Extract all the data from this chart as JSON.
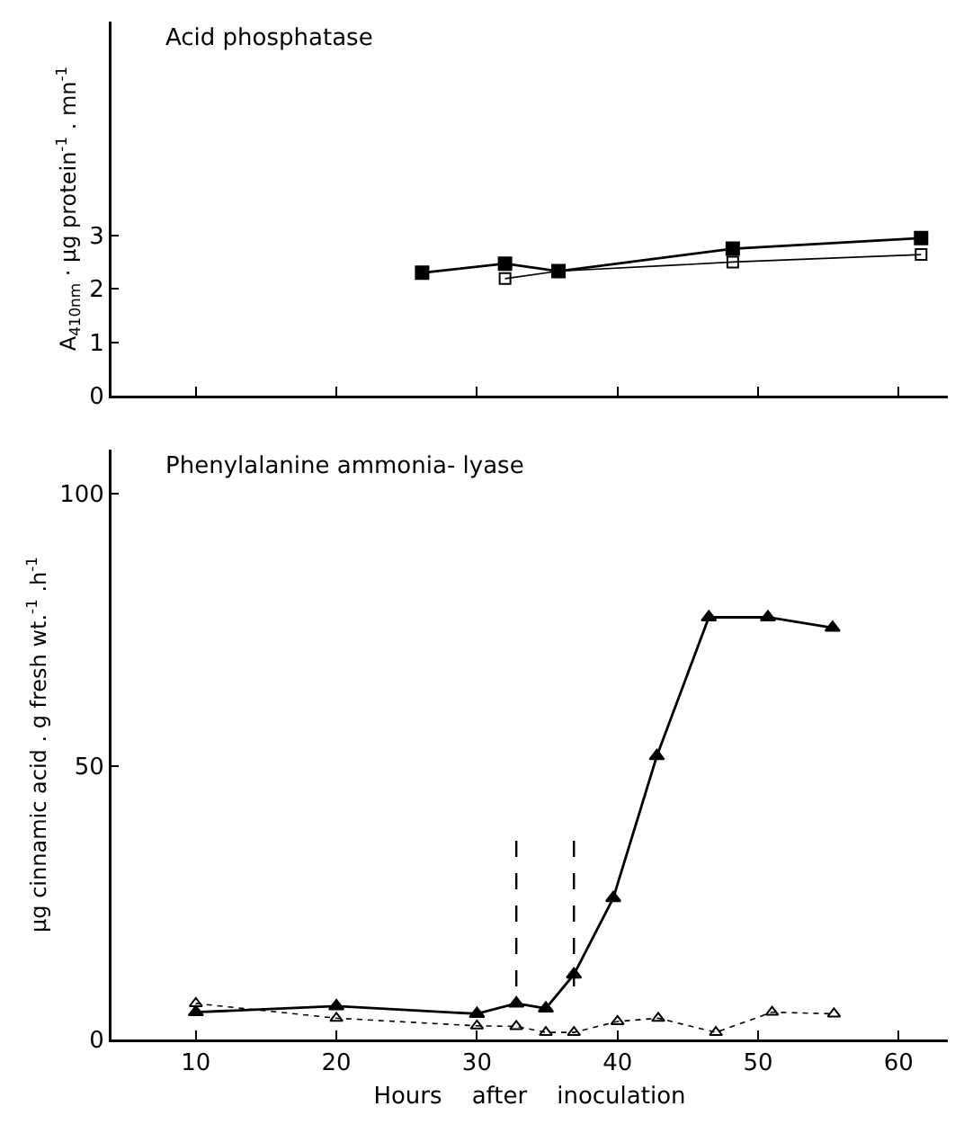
{
  "chart_data": [
    {
      "type": "line",
      "title": "Acid phosphatase",
      "ylabel": "A$_{410nm}$ · µg protein$^{-1}$ . mn$^{-1}$",
      "xlim": [
        4,
        63.5
      ],
      "xticks": [
        10,
        20,
        30,
        40,
        50,
        60
      ],
      "ylim": [
        0,
        7
      ],
      "yticks": [
        0,
        1,
        2,
        3
      ],
      "tick_labels": "y",
      "series": [
        {
          "color": "#000000",
          "marker": "square",
          "line_style": "solid",
          "x": [
            26.1,
            32,
            35.8,
            48.2,
            61.6
          ],
          "values": [
            2.3,
            2.47,
            2.33,
            2.75,
            2.95
          ]
        },
        {
          "color": "#000000",
          "marker": "square-open",
          "line_style": "solid",
          "x": [
            32,
            35.8,
            48.2,
            61.6
          ],
          "values": [
            2.19,
            2.33,
            2.5,
            2.64
          ]
        }
      ]
    },
    {
      "type": "line",
      "title": "Phenylalanine ammonia- lyase",
      "xlabel": "Hours    after    inoculation",
      "ylabel": "µg cinnamic acid . g fresh wt.$^{-1}$ .h$^{-1}$",
      "xlim": [
        4,
        63.5
      ],
      "xticks": [
        10,
        20,
        30,
        40,
        50,
        60
      ],
      "ylim": [
        0,
        108
      ],
      "yticks": [
        0,
        50,
        100
      ],
      "ref_lines": [
        {
          "axis": "x",
          "value": 32.8,
          "line_style": "dashed"
        },
        {
          "axis": "x",
          "value": 36.9,
          "line_style": "dashed"
        }
      ],
      "series": [
        {
          "color": "#000000",
          "marker": "triangle",
          "line_style": "solid",
          "x": [
            10,
            20,
            30,
            32.8,
            34.9,
            36.9,
            39.7,
            42.8,
            46.5,
            50.7,
            55.3
          ],
          "values": [
            5.0,
            6.1,
            4.7,
            6.6,
            5.7,
            11.9,
            25.9,
            51.9,
            77.3,
            77.3,
            75.4
          ]
        },
        {
          "color": "#000000",
          "marker": "triangle-open",
          "line_style": "dotted",
          "x": [
            10,
            20,
            30,
            32.8,
            34.9,
            36.9,
            40,
            42.9,
            47,
            51,
            55.4
          ],
          "values": [
            6.6,
            3.9,
            2.5,
            2.4,
            1.3,
            1.3,
            3.3,
            3.9,
            1.3,
            5.0,
            4.7
          ]
        }
      ]
    }
  ]
}
